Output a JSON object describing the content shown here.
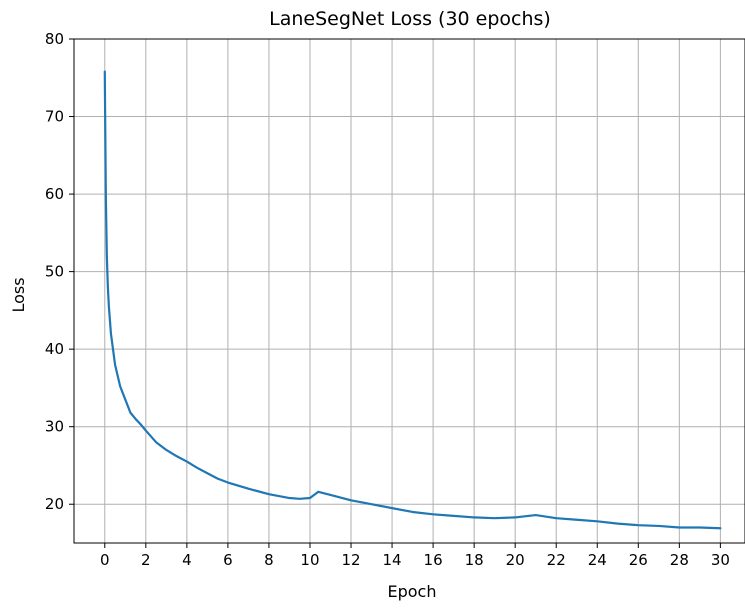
{
  "chart_data": {
    "type": "line",
    "title": "LaneSegNet Loss (30 epochs)",
    "xlabel": "Epoch",
    "ylabel": "Loss",
    "xlim": [
      -1.5,
      31.2
    ],
    "ylim": [
      15,
      80
    ],
    "x_ticks": [
      0,
      2,
      4,
      6,
      8,
      10,
      12,
      14,
      16,
      18,
      20,
      22,
      24,
      26,
      28,
      30
    ],
    "y_ticks": [
      20,
      30,
      40,
      50,
      60,
      70,
      80
    ],
    "grid": true,
    "line_color": "#1f77b4",
    "series": [
      {
        "x": [
          0,
          0.05,
          0.1,
          0.15,
          0.2,
          0.3,
          0.4,
          0.5,
          0.75,
          1.0,
          1.25,
          1.5,
          1.75,
          2.0,
          2.5,
          3.0,
          3.5,
          4.0,
          4.5,
          5.0,
          5.5,
          6.0,
          7.0,
          8.0,
          9.0,
          9.5,
          10.0,
          10.4,
          11.0,
          12.0,
          13.0,
          14.0,
          15.0,
          16.0,
          17.0,
          18.0,
          19.0,
          20.0,
          21.0,
          22.0,
          23.0,
          24.0,
          25.0,
          26.0,
          27.0,
          28.0,
          29.0,
          30.0
        ],
        "y": [
          75.8,
          60.0,
          52.0,
          48.0,
          45.5,
          42.0,
          40.0,
          38.0,
          35.2,
          33.5,
          31.8,
          31.0,
          30.3,
          29.5,
          28.0,
          27.0,
          26.2,
          25.5,
          24.7,
          24.0,
          23.3,
          22.8,
          22.0,
          21.3,
          20.8,
          20.7,
          20.8,
          21.6,
          21.2,
          20.5,
          20.0,
          19.5,
          19.0,
          18.7,
          18.5,
          18.3,
          18.2,
          18.3,
          18.6,
          18.2,
          18.0,
          17.8,
          17.5,
          17.3,
          17.2,
          17.0,
          17.0,
          16.9
        ]
      }
    ]
  }
}
